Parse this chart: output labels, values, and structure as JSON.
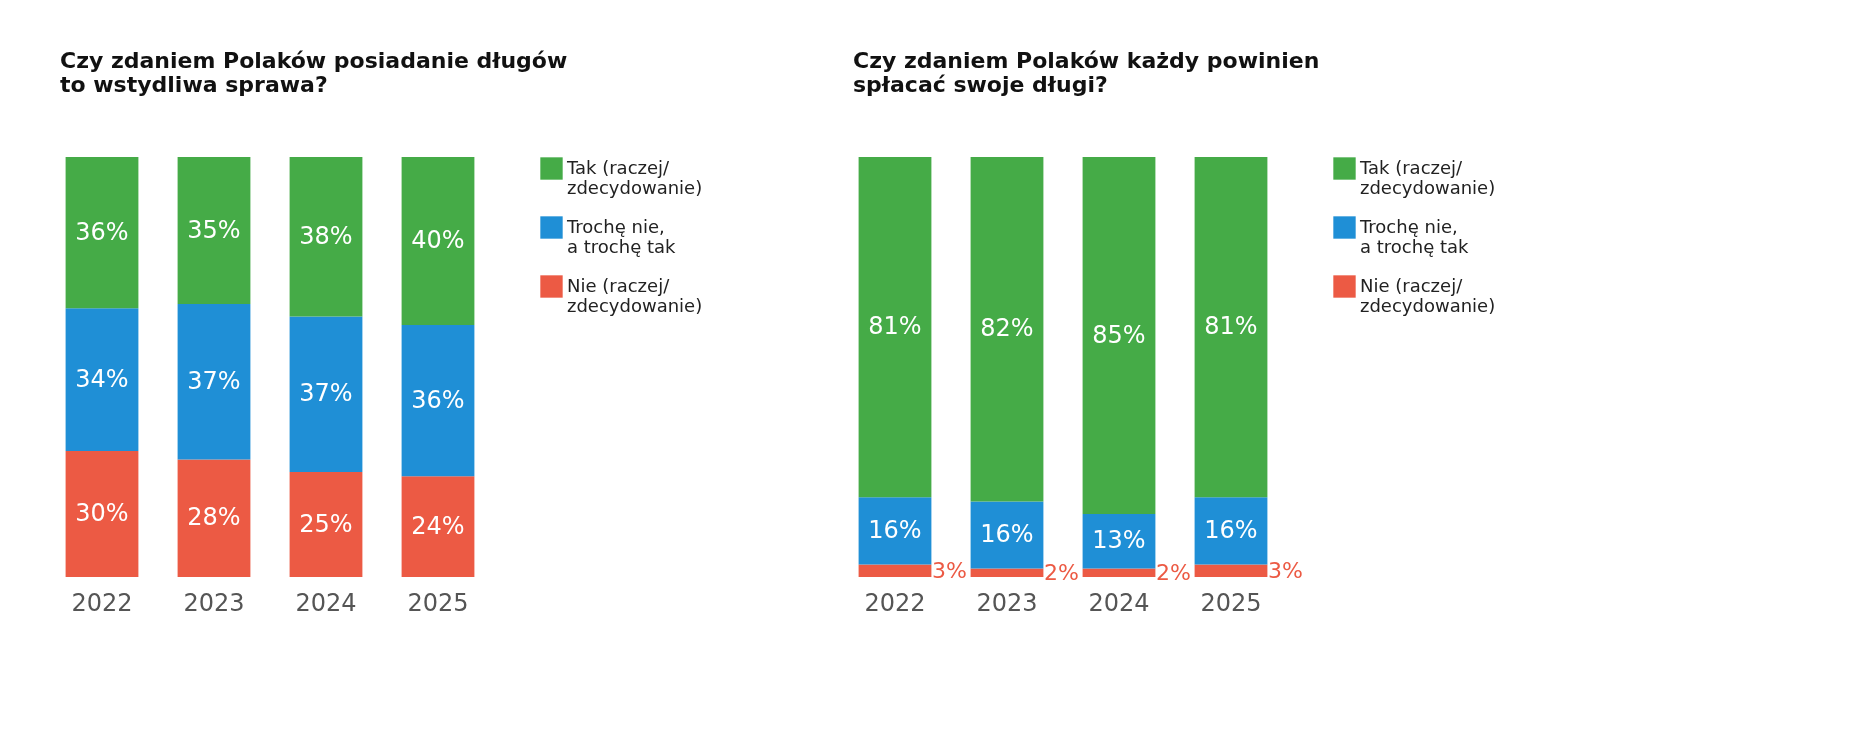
{
  "chart_data": [
    {
      "type": "bar",
      "stacked": true,
      "title": "Czy zdaniem Polaków posiadanie długów\nto wstydliwa sprawa?",
      "categories": [
        "2022",
        "2023",
        "2024",
        "2025"
      ],
      "legend": "right",
      "series": [
        {
          "name": "Nie (raczej/\nzdecydowanie)",
          "color": "#ec5a44",
          "values": [
            30,
            28,
            25,
            24
          ],
          "value_labels": [
            "30%",
            "28%",
            "25%",
            "24%"
          ]
        },
        {
          "name": "Trochę nie,\na trochę tak",
          "color": "#1f8fd6",
          "values": [
            34,
            37,
            37,
            36
          ],
          "value_labels": [
            "34%",
            "37%",
            "37%",
            "36%"
          ]
        },
        {
          "name": "Tak (raczej/\nzdecydowanie)",
          "color": "#45ab47",
          "values": [
            36,
            35,
            38,
            40
          ],
          "value_labels": [
            "36%",
            "35%",
            "38%",
            "40%"
          ]
        }
      ]
    },
    {
      "type": "bar",
      "stacked": true,
      "title": "Czy zdaniem Polaków każdy powinien\nspłacać swoje długi?",
      "categories": [
        "2022",
        "2023",
        "2024",
        "2025"
      ],
      "legend": "right",
      "series": [
        {
          "name": "Nie (raczej/\nzdecydowanie)",
          "color": "#ec5a44",
          "values": [
            3,
            2,
            2,
            3
          ],
          "value_labels": [
            "3%",
            "2%",
            "2%",
            "3%"
          ]
        },
        {
          "name": "Trochę nie,\na trochę tak",
          "color": "#1f8fd6",
          "values": [
            16,
            16,
            13,
            16
          ],
          "value_labels": [
            "16%",
            "16%",
            "13%",
            "16%"
          ]
        },
        {
          "name": "Tak (raczej/\nzdecydowanie)",
          "color": "#45ab47",
          "values": [
            81,
            82,
            85,
            81
          ],
          "value_labels": [
            "81%",
            "82%",
            "85%",
            "81%"
          ]
        }
      ]
    }
  ]
}
